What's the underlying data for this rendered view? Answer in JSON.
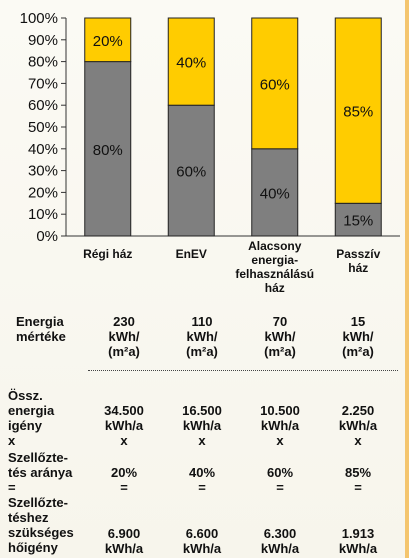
{
  "chart_data": {
    "type": "bar",
    "stacked": true,
    "categories": [
      "Régi ház",
      "EnEV",
      "Alacsony\nenergia-\nfelhasználású\nház",
      "Passzív\nház"
    ],
    "series": [
      {
        "values": [
          80,
          60,
          40,
          15
        ],
        "color": "#7f7f7f",
        "labels": [
          "80%",
          "60%",
          "40%",
          "15%"
        ]
      },
      {
        "values": [
          20,
          40,
          60,
          85
        ],
        "color": "#ffcc00",
        "labels": [
          "20%",
          "40%",
          "60%",
          "85%"
        ]
      }
    ],
    "ylim": [
      0,
      100
    ],
    "yticks": [
      "0%",
      "10%",
      "20%",
      "30%",
      "40%",
      "50%",
      "60%",
      "70%",
      "80%",
      "90%",
      "100%"
    ],
    "grid": false
  },
  "table": {
    "rows": [
      {
        "label": "Energia\nmértéke",
        "cells": [
          "230\nkWh/\n(m²a)",
          "110\nkWh/\n(m²a)",
          "70\nkWh/\n(m²a)",
          "15\nkWh/\n(m²a)"
        ]
      },
      {
        "label": "Össz.\nenergia\nigény\nx",
        "cells": [
          "34.500\nkWh/a\nx",
          "16.500\nkWh/a\nx",
          "10.500\nkWh/a\nx",
          "2.250\nkWh/a\nx"
        ]
      },
      {
        "label": "Szellőzte-\ntés aránya\n=",
        "cells": [
          "20%\n=",
          "40%\n=",
          "60%\n=",
          "85%\n="
        ]
      },
      {
        "label": "Szellőzte-\ntéshez\nszükséges\nhőigény",
        "cells": [
          "6.900\nkWh/a",
          "6.600\nkWh/a",
          "6.300\nkWh/a",
          "1.913\nkWh/a"
        ]
      }
    ]
  }
}
